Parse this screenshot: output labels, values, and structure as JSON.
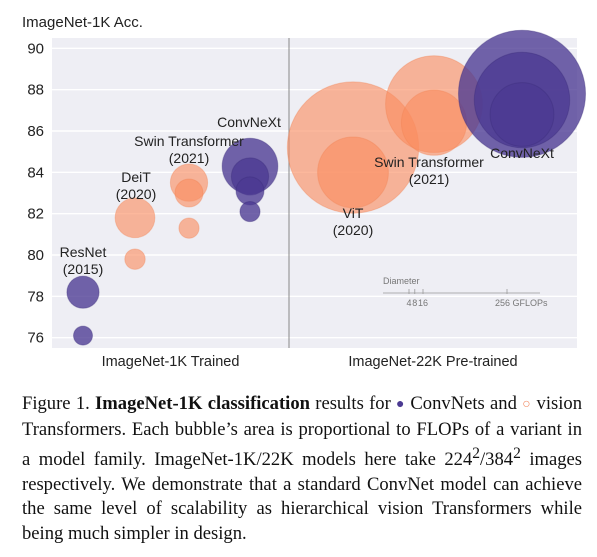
{
  "chart_data": {
    "type": "scatter",
    "ylabel": "ImageNet-1K Acc.",
    "ylim": [
      75.5,
      90.5
    ],
    "yticks": [
      90,
      88,
      86,
      84,
      82,
      80,
      78,
      76
    ],
    "sections": [
      {
        "label": "ImageNet-1K Trained"
      },
      {
        "label": "ImageNet-22K Pre-trained"
      }
    ],
    "colors": {
      "convnet": "#4b3a92",
      "vit": "#f9a07c"
    },
    "series": [
      {
        "section": 0,
        "kind": "convnet",
        "label": "ResNet\n(2015)",
        "points": [
          {
            "x": 1,
            "y": 76.1,
            "gflops": 4
          },
          {
            "x": 1,
            "y": 78.2,
            "gflops": 11.5
          }
        ]
      },
      {
        "section": 0,
        "kind": "vit",
        "label": "DeiT\n(2020)",
        "points": [
          {
            "x": 2,
            "y": 79.8,
            "gflops": 4.6
          },
          {
            "x": 2,
            "y": 81.8,
            "gflops": 17.5
          }
        ]
      },
      {
        "section": 0,
        "kind": "vit",
        "label": "Swin Transformer\n(2021)",
        "points": [
          {
            "x": 3,
            "y": 81.3,
            "gflops": 4.5
          },
          {
            "x": 3,
            "y": 83.0,
            "gflops": 8.7
          },
          {
            "x": 3,
            "y": 83.5,
            "gflops": 15.4
          }
        ]
      },
      {
        "section": 0,
        "kind": "convnet",
        "label": "ConvNeXt",
        "points": [
          {
            "x": 4,
            "y": 82.1,
            "gflops": 4.5
          },
          {
            "x": 4,
            "y": 83.1,
            "gflops": 8.7
          },
          {
            "x": 4,
            "y": 83.8,
            "gflops": 15.4
          },
          {
            "x": 4,
            "y": 84.3,
            "gflops": 34.4
          }
        ]
      },
      {
        "section": 1,
        "kind": "vit",
        "label": "ViT\n(2020)",
        "points": [
          {
            "x": 5,
            "y": 84.0,
            "gflops": 55.5
          },
          {
            "x": 5,
            "y": 85.2,
            "gflops": 191.1
          }
        ]
      },
      {
        "section": 1,
        "kind": "vit",
        "label": "Swin Transformer\n(2021)",
        "points": [
          {
            "x": 6,
            "y": 86.4,
            "gflops": 47.0
          },
          {
            "x": 6,
            "y": 87.3,
            "gflops": 103.9
          }
        ]
      },
      {
        "section": 1,
        "kind": "convnet",
        "label": "ConvNeXt",
        "points": [
          {
            "x": 7,
            "y": 86.8,
            "gflops": 45.1
          },
          {
            "x": 7,
            "y": 87.5,
            "gflops": 101.0
          },
          {
            "x": 7,
            "y": 87.8,
            "gflops": 179.0
          }
        ]
      }
    ],
    "diameter_legend": {
      "title": "Diameter",
      "ticks": [
        {
          "label": "4",
          "gflops": 4
        },
        {
          "label": "8",
          "gflops": 8
        },
        {
          "label": "16",
          "gflops": 16
        },
        {
          "label": "256 GFLOPs",
          "gflops": 256
        }
      ]
    }
  },
  "caption": {
    "fig_label": "Figure 1.",
    "title_bold": "ImageNet-1K classification",
    "text_a": " results for ",
    "dot_convnet": "●",
    "text_b": "ConvNets and",
    "dot_vit": "○",
    "text_c": " vision Transformers. Each bubble’s area is proportional to FLOPs of a variant in a model family. ImageNet-1K/22K models here take 224",
    "sup_1": "2",
    "text_d": "/384",
    "sup_2": "2",
    "text_e": " images respectively. We demonstrate that a standard ConvNet model can achieve the same level of scalability as hierarchical vision Transformers while being much simpler in design."
  }
}
